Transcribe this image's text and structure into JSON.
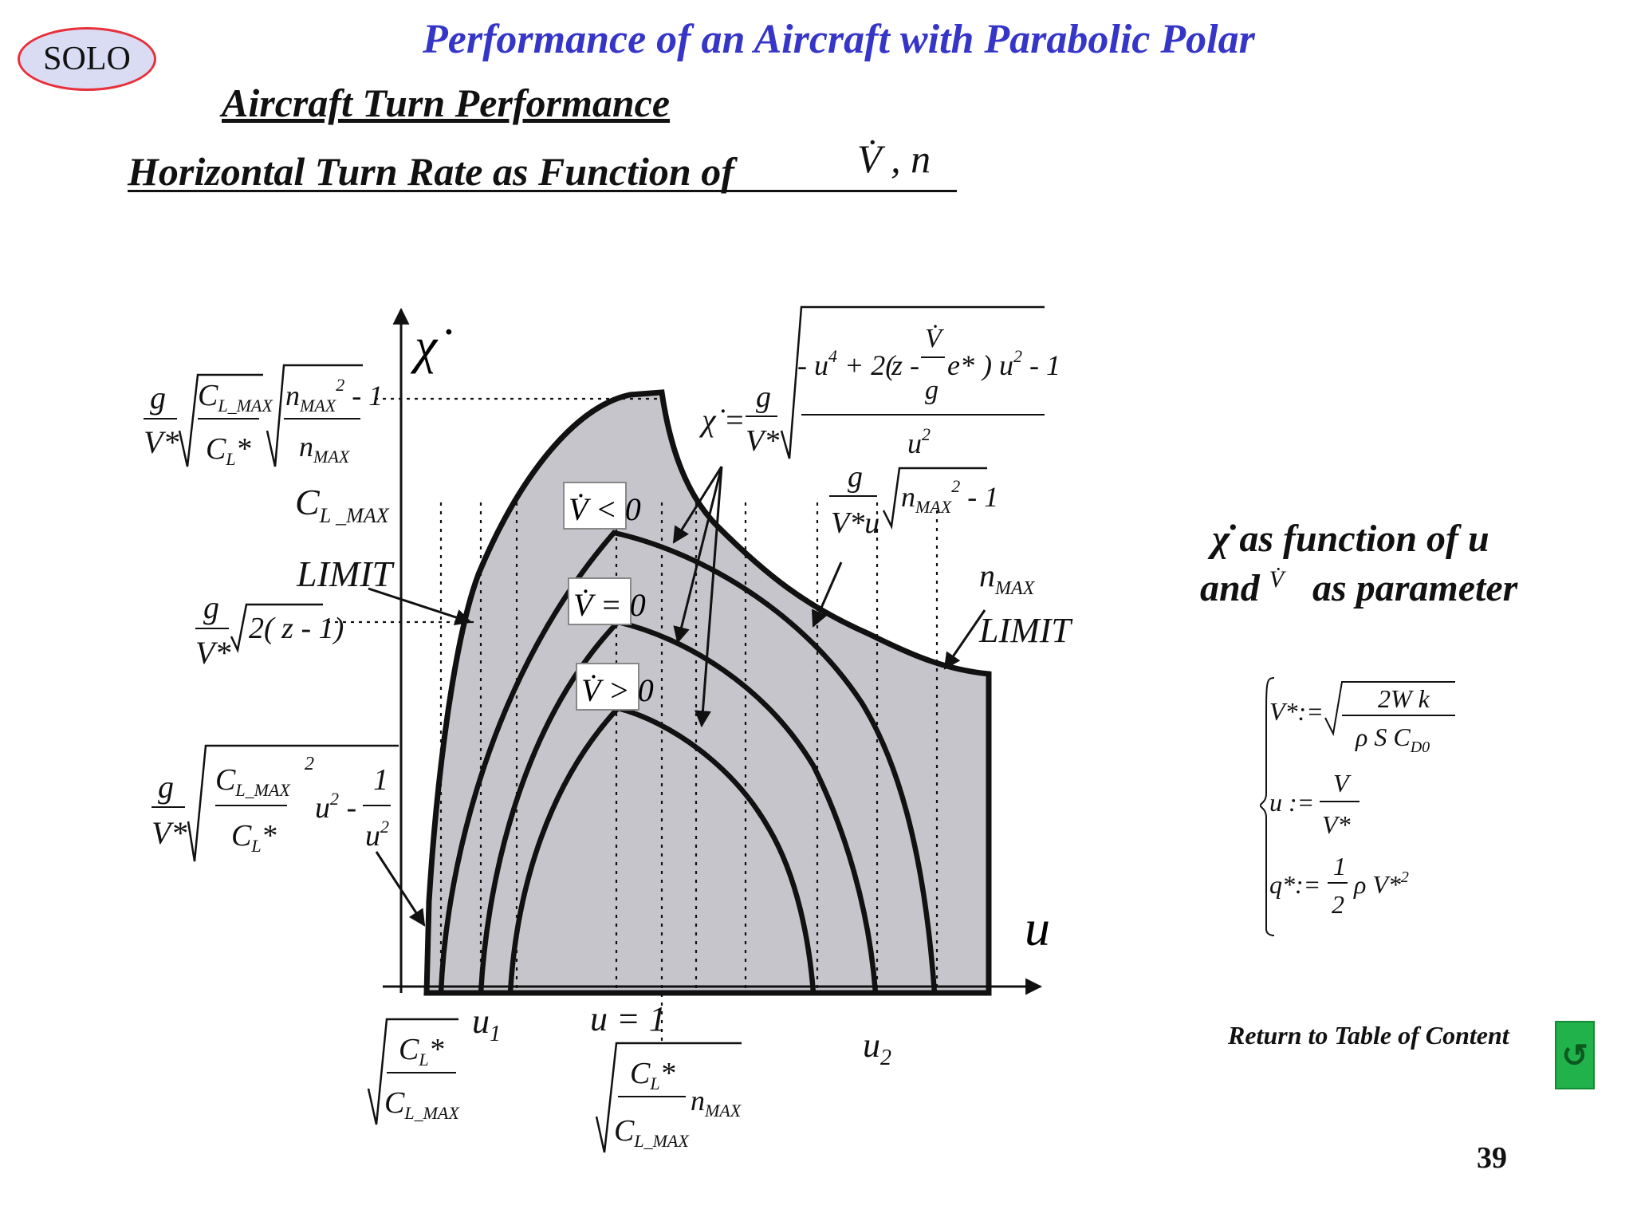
{
  "badge": "SOLO",
  "title": "Performance of an Aircraft with Parabolic Polar",
  "subtitle": "Aircraft Turn Performance",
  "heading": "Horizontal Turn Rate as Function of",
  "heading_symbols": "V̇ , n",
  "axes": {
    "y": "χ̇",
    "x": "u"
  },
  "limits": {
    "cl_max": "LIMIT",
    "n_max": "LIMIT"
  },
  "curves": {
    "v_dot_neg": "V̇ < 0",
    "v_dot_zero": "V̇ = 0",
    "v_dot_pos": "V̇ > 0"
  },
  "x_labels": {
    "u1": "u",
    "u1_sub": "1",
    "u_eq_1": "u = 1",
    "u2": "u",
    "u2_sub": "2"
  },
  "note_line1": "χ̇   as function of u",
  "note_line2_and": "and",
  "note_line2_sym": "V̇",
  "note_line2_rest": "as parameter",
  "return_link": "Return to Table of Content",
  "page_number": "39"
}
